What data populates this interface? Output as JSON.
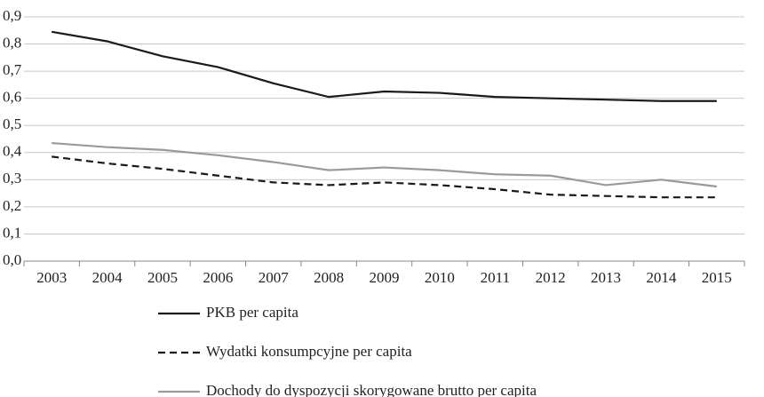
{
  "chart_data": {
    "type": "line",
    "categories": [
      "2003",
      "2004",
      "2005",
      "2006",
      "2007",
      "2008",
      "2009",
      "2010",
      "2011",
      "2012",
      "2013",
      "2014",
      "2015"
    ],
    "series": [
      {
        "name": "PKB per capita",
        "color": "#1a1a1a",
        "style": "solid",
        "values": [
          0.845,
          0.81,
          0.755,
          0.715,
          0.655,
          0.605,
          0.625,
          0.62,
          0.605,
          0.6,
          0.595,
          0.59,
          0.59
        ]
      },
      {
        "name": "Wydatki konsumpcyjne per capita",
        "color": "#1a1a1a",
        "style": "dashed",
        "values": [
          0.385,
          0.36,
          0.34,
          0.315,
          0.29,
          0.28,
          0.29,
          0.28,
          0.265,
          0.245,
          0.24,
          0.235,
          0.235
        ]
      },
      {
        "name": "Dochody do dyspozycji skorygowane brutto per capita",
        "color": "#9a9a9a",
        "style": "solid",
        "values": [
          0.435,
          0.42,
          0.41,
          0.39,
          0.365,
          0.335,
          0.345,
          0.335,
          0.32,
          0.315,
          0.28,
          0.3,
          0.275
        ]
      }
    ],
    "ylim": [
      0,
      0.9
    ],
    "yticks": [
      {
        "value": 0,
        "label": "0,0"
      },
      {
        "value": 0.1,
        "label": "0,1"
      },
      {
        "value": 0.2,
        "label": "0,2"
      },
      {
        "value": 0.3,
        "label": "0,3"
      },
      {
        "value": 0.4,
        "label": "0,4"
      },
      {
        "value": 0.5,
        "label": "0,5"
      },
      {
        "value": 0.6,
        "label": "0,6"
      },
      {
        "value": 0.7,
        "label": "0,7"
      },
      {
        "value": 0.8,
        "label": "0,8"
      },
      {
        "value": 0.9,
        "label": "0,9"
      }
    ],
    "grid": true,
    "legend": "bottom"
  }
}
